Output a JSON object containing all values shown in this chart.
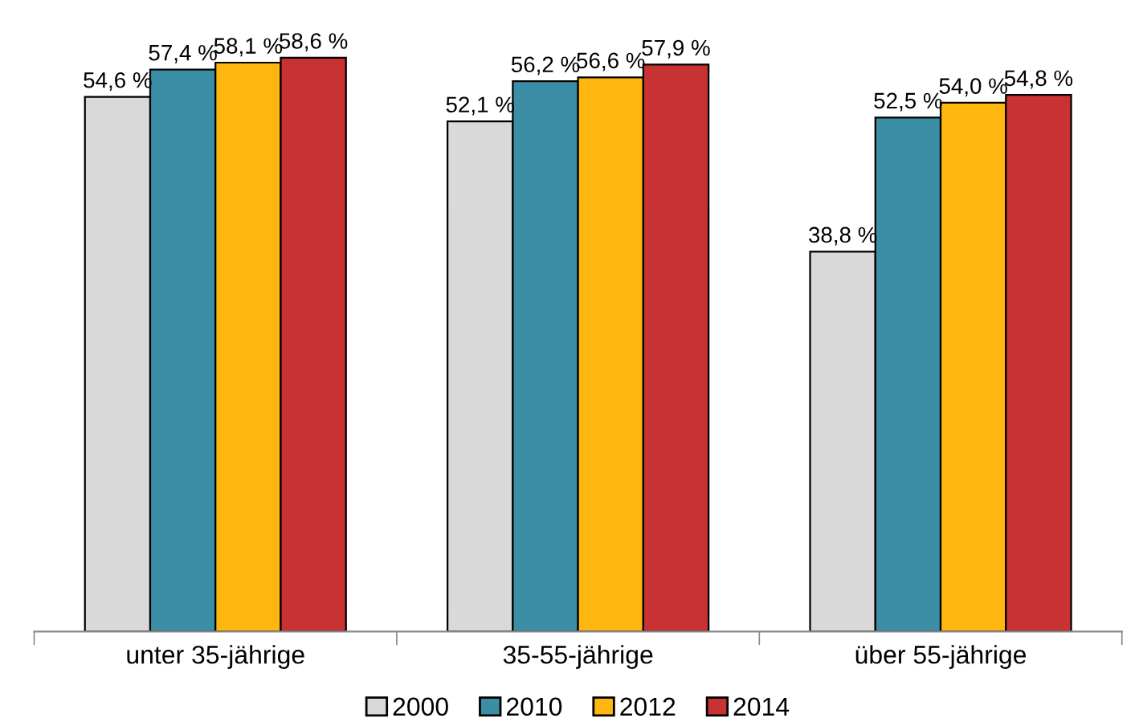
{
  "chart_data": {
    "type": "bar",
    "categories": [
      "unter 35-jährige",
      "35-55-jährige",
      "über 55-jährige"
    ],
    "series": [
      {
        "name": "2000",
        "color": "#d9d9d9",
        "values": [
          54.6,
          52.1,
          38.8
        ],
        "value_labels": [
          "54,6 %",
          "52,1 %",
          "38,8 %"
        ]
      },
      {
        "name": "2010",
        "color": "#3b8ea5",
        "values": [
          57.4,
          56.2,
          52.5
        ],
        "value_labels": [
          "57,4 %",
          "56,2 %",
          "52,5 %"
        ]
      },
      {
        "name": "2012",
        "color": "#ffb611",
        "values": [
          58.1,
          56.6,
          54.0
        ],
        "value_labels": [
          "58,1 %",
          "56,6 %",
          "54,0 %"
        ]
      },
      {
        "name": "2014",
        "color": "#c83232",
        "values": [
          58.6,
          57.9,
          54.8
        ],
        "value_labels": [
          "58,6 %",
          "57,9 %",
          "54,8 %"
        ]
      }
    ],
    "legend": "bottom",
    "grid": false,
    "tick_labels": "x"
  }
}
